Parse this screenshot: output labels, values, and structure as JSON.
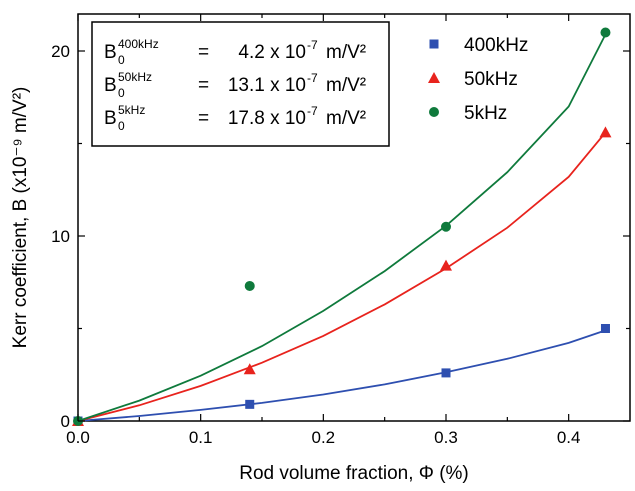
{
  "chart_data": {
    "type": "scatter",
    "xlabel": "Rod volume fraction, Φ (%)",
    "ylabel": "Kerr coefficient, B (x10⁻⁹ m/V²)",
    "xlim": [
      0,
      0.45
    ],
    "ylim": [
      0,
      22
    ],
    "x_ticks": [
      "0.0",
      "0.1",
      "0.2",
      "0.3",
      "0.4"
    ],
    "y_ticks": [
      "0",
      "10",
      "20"
    ],
    "grid": false,
    "legend_position": "top-right",
    "series": [
      {
        "name": "400kHz",
        "marker": "square",
        "color": "#2e4fb0",
        "points": [
          [
            0.0,
            0.0
          ],
          [
            0.14,
            0.9
          ],
          [
            0.3,
            2.6
          ],
          [
            0.43,
            5.0
          ]
        ],
        "fit": [
          [
            0.0,
            0.0
          ],
          [
            0.05,
            0.27
          ],
          [
            0.1,
            0.6
          ],
          [
            0.15,
            0.98
          ],
          [
            0.2,
            1.43
          ],
          [
            0.25,
            1.98
          ],
          [
            0.3,
            2.63
          ],
          [
            0.35,
            3.36
          ],
          [
            0.4,
            4.22
          ],
          [
            0.43,
            4.9
          ]
        ]
      },
      {
        "name": "50kHz",
        "marker": "triangle",
        "color": "#e8231d",
        "points": [
          [
            0.0,
            0.0
          ],
          [
            0.14,
            2.8
          ],
          [
            0.3,
            8.4
          ],
          [
            0.43,
            15.6
          ]
        ],
        "fit": [
          [
            0.0,
            0.0
          ],
          [
            0.05,
            0.85
          ],
          [
            0.1,
            1.9
          ],
          [
            0.15,
            3.15
          ],
          [
            0.2,
            4.6
          ],
          [
            0.25,
            6.3
          ],
          [
            0.3,
            8.25
          ],
          [
            0.35,
            10.45
          ],
          [
            0.4,
            13.2
          ],
          [
            0.43,
            15.6
          ]
        ]
      },
      {
        "name": "5kHz",
        "marker": "circle",
        "color": "#0f7a3c",
        "points": [
          [
            0.0,
            0.0
          ],
          [
            0.14,
            7.3
          ],
          [
            0.3,
            10.5
          ],
          [
            0.43,
            21.0
          ]
        ],
        "fit": [
          [
            0.0,
            0.0
          ],
          [
            0.05,
            1.1
          ],
          [
            0.1,
            2.45
          ],
          [
            0.15,
            4.05
          ],
          [
            0.2,
            5.95
          ],
          [
            0.25,
            8.1
          ],
          [
            0.3,
            10.55
          ],
          [
            0.35,
            13.45
          ],
          [
            0.4,
            17.0
          ],
          [
            0.43,
            20.9
          ]
        ]
      }
    ],
    "annotation_box": {
      "lines": [
        {
          "b": "B",
          "sub": "0",
          "sup": "400kHz",
          "eq": "=",
          "value": "4.2 x 10",
          "exp": "-7",
          "unit": "m/V²"
        },
        {
          "b": "B",
          "sub": "0",
          "sup": "50kHz",
          "eq": "=",
          "value": "13.1 x 10",
          "exp": "-7",
          "unit": "m/V²"
        },
        {
          "b": "B",
          "sub": "0",
          "sup": "5kHz",
          "eq": "=",
          "value": "17.8 x 10",
          "exp": "-7",
          "unit": "m/V²"
        }
      ]
    }
  }
}
